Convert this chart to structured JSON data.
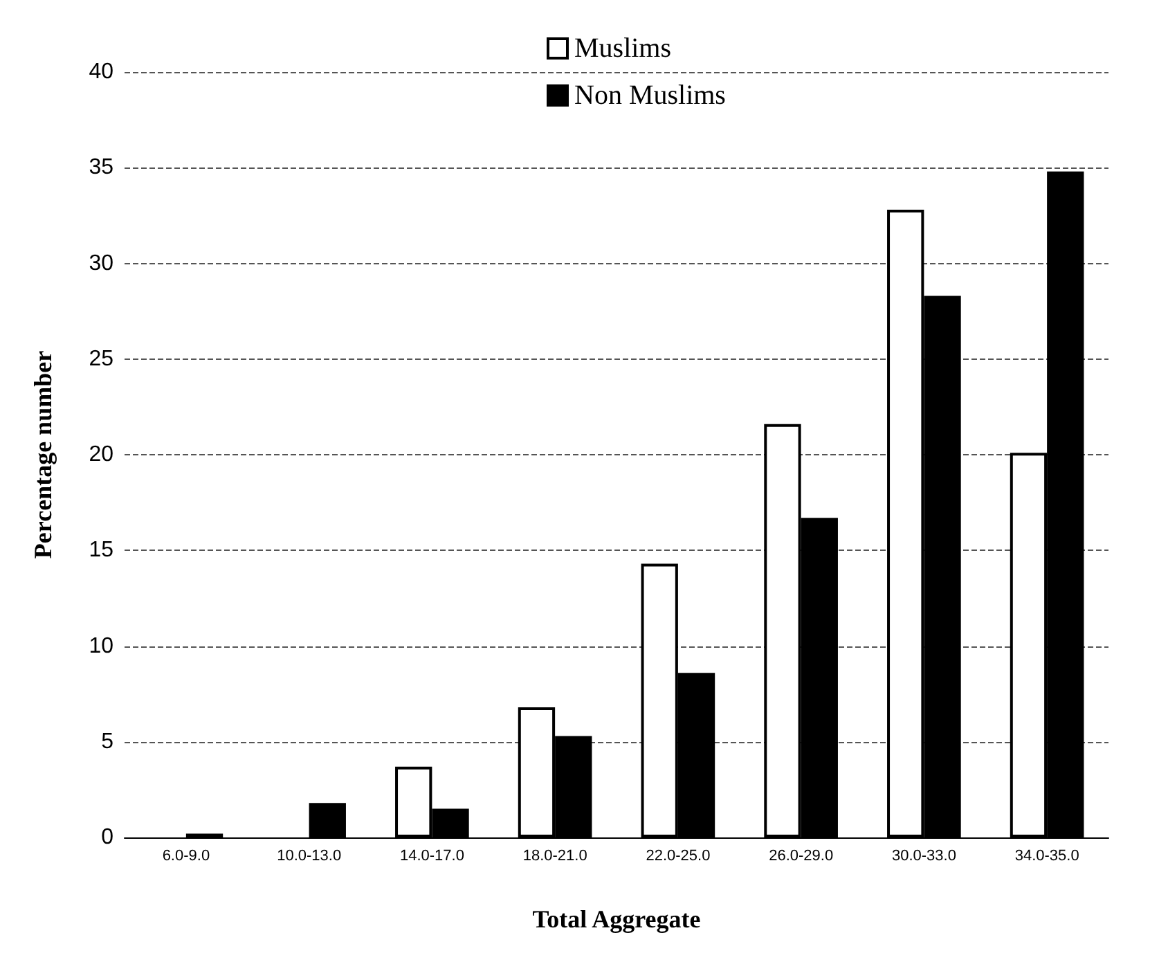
{
  "chart_data": {
    "type": "bar",
    "xlabel": "Total Aggregate",
    "ylabel": "Percentage number",
    "categories": [
      "6.0-9.0",
      "10.0-13.0",
      "14.0-17.0",
      "18.0-21.0",
      "22.0-25.0",
      "26.0-29.0",
      "30.0-33.0",
      "34.0-35.0"
    ],
    "series": [
      {
        "name": "Muslims",
        "color": "#ffffff",
        "values": [
          0,
          0,
          3.7,
          6.8,
          14.3,
          21.6,
          32.8,
          20.1
        ]
      },
      {
        "name": "Non Muslims",
        "color": "#000000",
        "values": [
          0.2,
          1.8,
          1.5,
          5.3,
          8.6,
          16.7,
          28.3,
          34.8
        ]
      }
    ],
    "ylim": [
      0,
      40
    ],
    "yticks": [
      0,
      5,
      10,
      15,
      20,
      25,
      30,
      35,
      40
    ],
    "grid": "y",
    "legend": "top"
  }
}
